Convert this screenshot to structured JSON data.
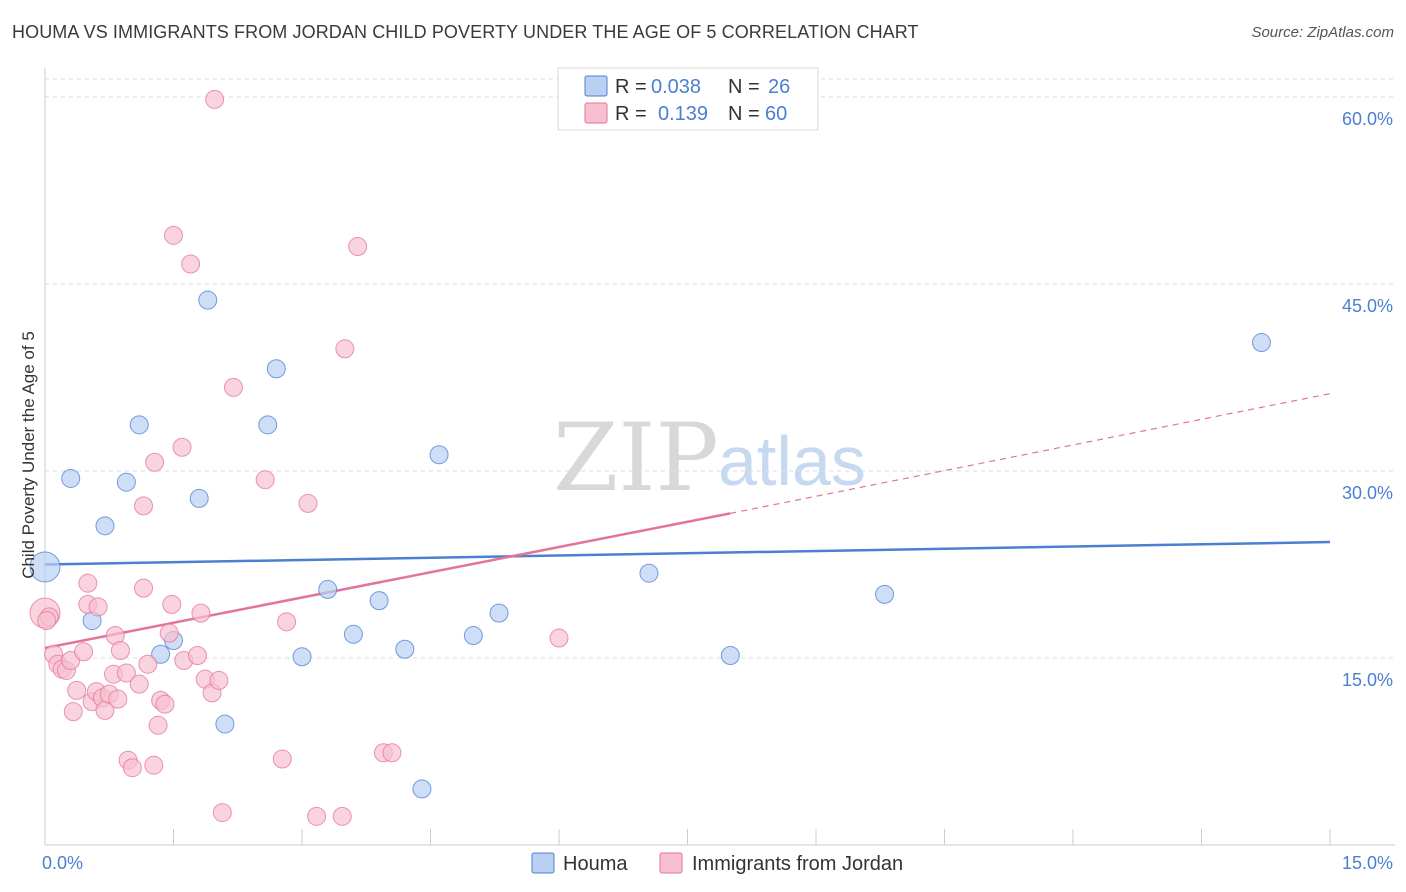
{
  "title": "HOUMA VS IMMIGRANTS FROM JORDAN CHILD POVERTY UNDER THE AGE OF 5 CORRELATION CHART",
  "source": "Source: ZipAtlas.com",
  "watermark": {
    "zip": "ZIP",
    "atlas": "atlas"
  },
  "colors": {
    "houma": "#4a7fd1",
    "jordan": "#e4739a",
    "houma_fill": "#b9d0f2",
    "jordan_fill": "#f7c0d0",
    "tick": "#4a7fd1"
  },
  "legend_top": [
    {
      "r_label": "R =",
      "r_value": "0.038",
      "n_label": "N =",
      "n_value": "26"
    },
    {
      "r_label": "R =",
      "r_value": "0.139",
      "n_label": "N =",
      "n_value": "60"
    }
  ],
  "chart_data": {
    "type": "scatter",
    "xlabel": "",
    "ylabel": "Child Poverty Under the Age of 5",
    "xlim": [
      0,
      15
    ],
    "ylim": [
      0,
      62
    ],
    "x_ticks": [
      "0.0%",
      "15.0%"
    ],
    "y_ticks": [
      {
        "value": 15,
        "label": "15.0%"
      },
      {
        "value": 30,
        "label": "30.0%"
      },
      {
        "value": 45,
        "label": "45.0%"
      },
      {
        "value": 60,
        "label": "60.0%"
      }
    ],
    "grid": true,
    "legend_position": "bottom-center",
    "series": [
      {
        "name": "Houma",
        "trend": {
          "x": [
            0,
            15
          ],
          "y": [
            22.5,
            24.3
          ]
        },
        "points": [
          {
            "x": 0.0,
            "y": 22.3
          },
          {
            "x": 0.3,
            "y": 29.4
          },
          {
            "x": 0.55,
            "y": 18.0
          },
          {
            "x": 0.7,
            "y": 25.6
          },
          {
            "x": 0.95,
            "y": 29.1
          },
          {
            "x": 1.1,
            "y": 33.7
          },
          {
            "x": 1.35,
            "y": 15.3
          },
          {
            "x": 1.5,
            "y": 16.4
          },
          {
            "x": 1.8,
            "y": 27.8
          },
          {
            "x": 1.9,
            "y": 43.7
          },
          {
            "x": 2.1,
            "y": 9.7
          },
          {
            "x": 2.6,
            "y": 33.7
          },
          {
            "x": 2.7,
            "y": 38.2
          },
          {
            "x": 3.0,
            "y": 15.1
          },
          {
            "x": 3.3,
            "y": 20.5
          },
          {
            "x": 3.6,
            "y": 16.9
          },
          {
            "x": 3.9,
            "y": 19.6
          },
          {
            "x": 4.2,
            "y": 15.7
          },
          {
            "x": 4.4,
            "y": 4.5
          },
          {
            "x": 4.6,
            "y": 31.3
          },
          {
            "x": 5.0,
            "y": 16.8
          },
          {
            "x": 5.3,
            "y": 18.6
          },
          {
            "x": 7.05,
            "y": 21.8
          },
          {
            "x": 8.0,
            "y": 15.2
          },
          {
            "x": 9.8,
            "y": 20.1
          },
          {
            "x": 14.2,
            "y": 40.3
          }
        ]
      },
      {
        "name": "Immigrants from Jordan",
        "trend": {
          "x": [
            0,
            8.0
          ],
          "y": [
            15.8,
            26.6
          ]
        },
        "trend_dashed": {
          "x": [
            8.0,
            15
          ],
          "y": [
            26.6,
            36.2
          ]
        },
        "points": [
          {
            "x": 0.0,
            "y": 18.6
          },
          {
            "x": 0.05,
            "y": 18.3
          },
          {
            "x": 0.1,
            "y": 15.3
          },
          {
            "x": 0.15,
            "y": 14.5
          },
          {
            "x": 0.2,
            "y": 14.1
          },
          {
            "x": 0.25,
            "y": 14.0
          },
          {
            "x": 0.3,
            "y": 14.8
          },
          {
            "x": 0.33,
            "y": 10.7
          },
          {
            "x": 0.37,
            "y": 12.4
          },
          {
            "x": 0.45,
            "y": 15.5
          },
          {
            "x": 0.5,
            "y": 19.3
          },
          {
            "x": 0.5,
            "y": 21.0
          },
          {
            "x": 0.55,
            "y": 11.5
          },
          {
            "x": 0.6,
            "y": 12.3
          },
          {
            "x": 0.62,
            "y": 19.1
          },
          {
            "x": 0.67,
            "y": 11.8
          },
          {
            "x": 0.7,
            "y": 10.8
          },
          {
            "x": 0.75,
            "y": 12.1
          },
          {
            "x": 0.8,
            "y": 13.7
          },
          {
            "x": 0.82,
            "y": 16.8
          },
          {
            "x": 0.85,
            "y": 11.7
          },
          {
            "x": 0.88,
            "y": 15.6
          },
          {
            "x": 0.95,
            "y": 13.8
          },
          {
            "x": 0.97,
            "y": 6.8
          },
          {
            "x": 1.02,
            "y": 6.2
          },
          {
            "x": 1.1,
            "y": 12.9
          },
          {
            "x": 1.15,
            "y": 27.2
          },
          {
            "x": 1.15,
            "y": 20.6
          },
          {
            "x": 1.2,
            "y": 14.5
          },
          {
            "x": 1.27,
            "y": 6.4
          },
          {
            "x": 1.28,
            "y": 30.7
          },
          {
            "x": 1.32,
            "y": 9.6
          },
          {
            "x": 1.35,
            "y": 11.6
          },
          {
            "x": 1.4,
            "y": 11.3
          },
          {
            "x": 1.45,
            "y": 17.0
          },
          {
            "x": 1.48,
            "y": 19.3
          },
          {
            "x": 1.5,
            "y": 48.9
          },
          {
            "x": 1.6,
            "y": 31.9
          },
          {
            "x": 1.62,
            "y": 14.8
          },
          {
            "x": 1.7,
            "y": 46.6
          },
          {
            "x": 1.78,
            "y": 15.2
          },
          {
            "x": 1.82,
            "y": 18.6
          },
          {
            "x": 1.87,
            "y": 13.3
          },
          {
            "x": 1.95,
            "y": 12.2
          },
          {
            "x": 1.98,
            "y": 59.8
          },
          {
            "x": 2.03,
            "y": 13.2
          },
          {
            "x": 2.07,
            "y": 2.6
          },
          {
            "x": 2.2,
            "y": 36.7
          },
          {
            "x": 2.57,
            "y": 29.3
          },
          {
            "x": 2.77,
            "y": 6.9
          },
          {
            "x": 2.82,
            "y": 17.9
          },
          {
            "x": 3.07,
            "y": 27.4
          },
          {
            "x": 3.17,
            "y": 2.3
          },
          {
            "x": 3.47,
            "y": 2.3
          },
          {
            "x": 3.5,
            "y": 39.8
          },
          {
            "x": 3.65,
            "y": 48.0
          },
          {
            "x": 3.95,
            "y": 7.4
          },
          {
            "x": 4.05,
            "y": 7.4
          },
          {
            "x": 6.0,
            "y": 16.6
          },
          {
            "x": 0.02,
            "y": 18.0
          }
        ]
      }
    ]
  }
}
